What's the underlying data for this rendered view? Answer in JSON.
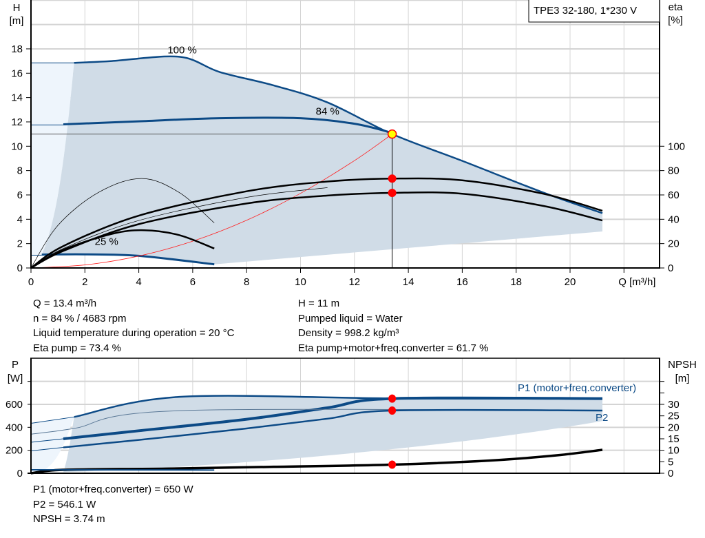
{
  "chart_data": [
    {
      "type": "line",
      "title": "TPE3 32-180, 1*230 V",
      "xlabel": "Q [m³/h]",
      "ylabel": "H\n[m]",
      "ylabel_lines": [
        "H",
        "[m]"
      ],
      "y2label_lines": [
        "eta",
        "[%]"
      ],
      "xlim": [
        0,
        23.3
      ],
      "ylim": [
        0,
        22
      ],
      "y2lim": [
        0,
        220
      ],
      "grid": true,
      "x_ticks": [
        0,
        2,
        4,
        6,
        8,
        10,
        12,
        14,
        16,
        18,
        20
      ],
      "y_ticks": [
        0,
        2,
        4,
        6,
        8,
        10,
        12,
        14,
        16,
        18
      ],
      "y2_ticks": [
        0,
        20,
        40,
        60,
        80,
        100
      ],
      "annotations": [
        {
          "text": "100 %",
          "x": 5.5,
          "y": 17.35
        },
        {
          "text": "84 %",
          "x": 11,
          "y": 12.3
        },
        {
          "text": "25 %",
          "x": 2.8,
          "y": 1.6
        }
      ],
      "series": [
        {
          "id": "h-100",
          "kind": "H",
          "points": [
            [
              1.6,
              16.85
            ],
            [
              3,
              17.0
            ],
            [
              5.5,
              17.35
            ],
            [
              7,
              16.1
            ],
            [
              9,
              15.0
            ],
            [
              11,
              13.6
            ],
            [
              13.4,
              11.0
            ],
            [
              16,
              8.8
            ],
            [
              19,
              6.2
            ],
            [
              21.2,
              4.5
            ]
          ]
        },
        {
          "id": "h-84",
          "kind": "H",
          "points": [
            [
              1.2,
              11.8
            ],
            [
              4,
              12.05
            ],
            [
              7,
              12.3
            ],
            [
              10,
              12.3
            ],
            [
              12,
              11.85
            ],
            [
              13.4,
              11.1
            ]
          ]
        },
        {
          "id": "h-25",
          "kind": "H",
          "points": [
            [
              0.4,
              1.1
            ],
            [
              2,
              1.12
            ],
            [
              4,
              1.0
            ],
            [
              6.8,
              0.3
            ]
          ]
        },
        {
          "id": "system-curve",
          "kind": "system",
          "points": [
            [
              0,
              0
            ],
            [
              2,
              0.25
            ],
            [
              4,
              0.98
            ],
            [
              6,
              2.2
            ],
            [
              8,
              3.92
            ],
            [
              10,
              6.13
            ],
            [
              12,
              8.82
            ],
            [
              13.4,
              11
            ]
          ]
        },
        {
          "id": "eta-pump",
          "kind": "eta",
          "points": [
            [
              0,
              0
            ],
            [
              1.2,
              18
            ],
            [
              4,
              43
            ],
            [
              8,
              63
            ],
            [
              11,
              71
            ],
            [
              13.4,
              73.4
            ],
            [
              16,
              72
            ],
            [
              19,
              61
            ],
            [
              21.2,
              47
            ]
          ]
        },
        {
          "id": "eta-total",
          "kind": "eta",
          "points": [
            [
              0,
              0
            ],
            [
              1.2,
              14
            ],
            [
              4,
              36
            ],
            [
              8,
              53
            ],
            [
              11,
              59.5
            ],
            [
              13.4,
              61.7
            ],
            [
              16,
              61
            ],
            [
              19,
              51
            ],
            [
              21.2,
              39
            ]
          ]
        },
        {
          "id": "eta-small-thin",
          "kind": "eta",
          "points": [
            [
              0,
              0
            ],
            [
              1,
              35
            ],
            [
              2.5,
              62
            ],
            [
              4.1,
              73.5
            ],
            [
              5.5,
              62
            ],
            [
              6.8,
              37
            ]
          ]
        },
        {
          "id": "eta-small",
          "kind": "eta",
          "points": [
            [
              0,
              0
            ],
            [
              1.2,
              15
            ],
            [
              3,
              28
            ],
            [
              4.2,
              31
            ],
            [
              5.5,
              27
            ],
            [
              6.8,
              16
            ]
          ]
        }
      ],
      "operating_point": {
        "Q": 13.4,
        "H": 11,
        "eta_pump": 73.4,
        "eta_total": 61.7
      }
    },
    {
      "type": "line",
      "ylabel_lines": [
        "P",
        "[W]"
      ],
      "y2label_lines": [
        "NPSH",
        "[m]"
      ],
      "xlim": [
        0,
        23.3
      ],
      "ylim": [
        0,
        1000
      ],
      "y2lim": [
        0,
        50
      ],
      "grid": true,
      "y_ticks": [
        0,
        200,
        400,
        600
      ],
      "y2_ticks": [
        0,
        5,
        10,
        15,
        20,
        25,
        30
      ],
      "series": [
        {
          "id": "p1-100",
          "name": "P1 (motor+freq.converter)",
          "kind": "P",
          "points": [
            [
              1.6,
              490
            ],
            [
              5.5,
              665
            ],
            [
              13.4,
              652
            ],
            [
              21.2,
              650
            ]
          ]
        },
        {
          "id": "p1-84",
          "kind": "P",
          "points": [
            [
              1.2,
              300
            ],
            [
              4,
              370
            ],
            [
              8,
              470
            ],
            [
              11,
              570
            ],
            [
              13.4,
              650
            ],
            [
              21.2,
              650
            ]
          ]
        },
        {
          "id": "p2-100",
          "kind": "P",
          "points": [
            [
              0,
              340
            ],
            [
              1.6,
              390
            ],
            [
              5.5,
              545
            ],
            [
              21.2,
              545
            ]
          ]
        },
        {
          "id": "p2-84",
          "name": "P2",
          "kind": "P",
          "points": [
            [
              1.2,
              225
            ],
            [
              4,
              290
            ],
            [
              8,
              390
            ],
            [
              11,
              475
            ],
            [
              13.4,
              546
            ],
            [
              21.2,
              546
            ]
          ]
        },
        {
          "id": "npsh",
          "kind": "NPSH",
          "points": [
            [
              0,
              0
            ],
            [
              1.2,
              1.5
            ],
            [
              5,
              2.0
            ],
            [
              9,
              2.8
            ],
            [
              13.4,
              3.74
            ],
            [
              17,
              5.5
            ],
            [
              19.5,
              7.8
            ],
            [
              21.2,
              10.2
            ]
          ]
        }
      ],
      "operating_point": {
        "P1": 650,
        "P2": 546.1,
        "NPSH": 3.74
      }
    }
  ],
  "info_top": {
    "left": [
      "Q = 13.4 m³/h",
      "n = 84 % / 4683 rpm",
      "Liquid temperature during operation = 20 °C",
      "Eta pump = 73.4 %"
    ],
    "right": [
      "H = 11 m",
      "Pumped liquid = Water",
      "Density = 998.2 kg/m³",
      "Eta pump+motor+freq.converter = 61.7 %"
    ]
  },
  "info_bottom": [
    "P1 (motor+freq.converter) = 650 W",
    "P2 = 546.1 W",
    "NPSH = 3.74 m"
  ],
  "colors": {
    "curve": "#0c4a86",
    "area": "#d0dce7",
    "area_light": "#eef5fc",
    "grid": "#d4d4d4",
    "system": "#ff2020",
    "point": "#ff0000",
    "point_yellow": "#ffff00"
  }
}
